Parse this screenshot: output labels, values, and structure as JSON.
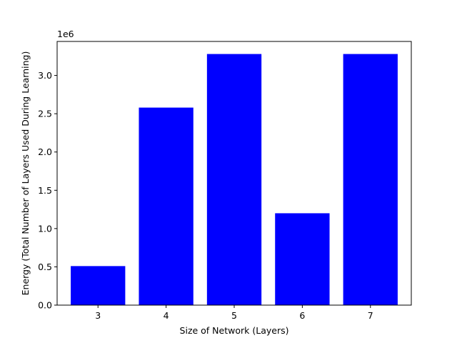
{
  "chart_data": {
    "type": "bar",
    "categories": [
      "3",
      "4",
      "5",
      "6",
      "7"
    ],
    "x": [
      3,
      4,
      5,
      6,
      7
    ],
    "values": [
      510000,
      2580000,
      3280000,
      1200000,
      3280000
    ],
    "xlabel": "Size of Network (Layers)",
    "ylabel": "Energy (Total Number of Layers Used During Learning)",
    "ylim": [
      0,
      3444000
    ],
    "xlim": [
      2.4,
      7.6
    ],
    "y_ticks": [
      0,
      500000,
      1000000,
      1500000,
      2000000,
      2500000,
      3000000
    ],
    "y_tick_labels": [
      "0.0",
      "0.5",
      "1.0",
      "1.5",
      "2.0",
      "2.5",
      "3.0"
    ],
    "y_offset_label": "1e6",
    "bar_color": "#0000ff",
    "grid": false,
    "legend": "none"
  }
}
